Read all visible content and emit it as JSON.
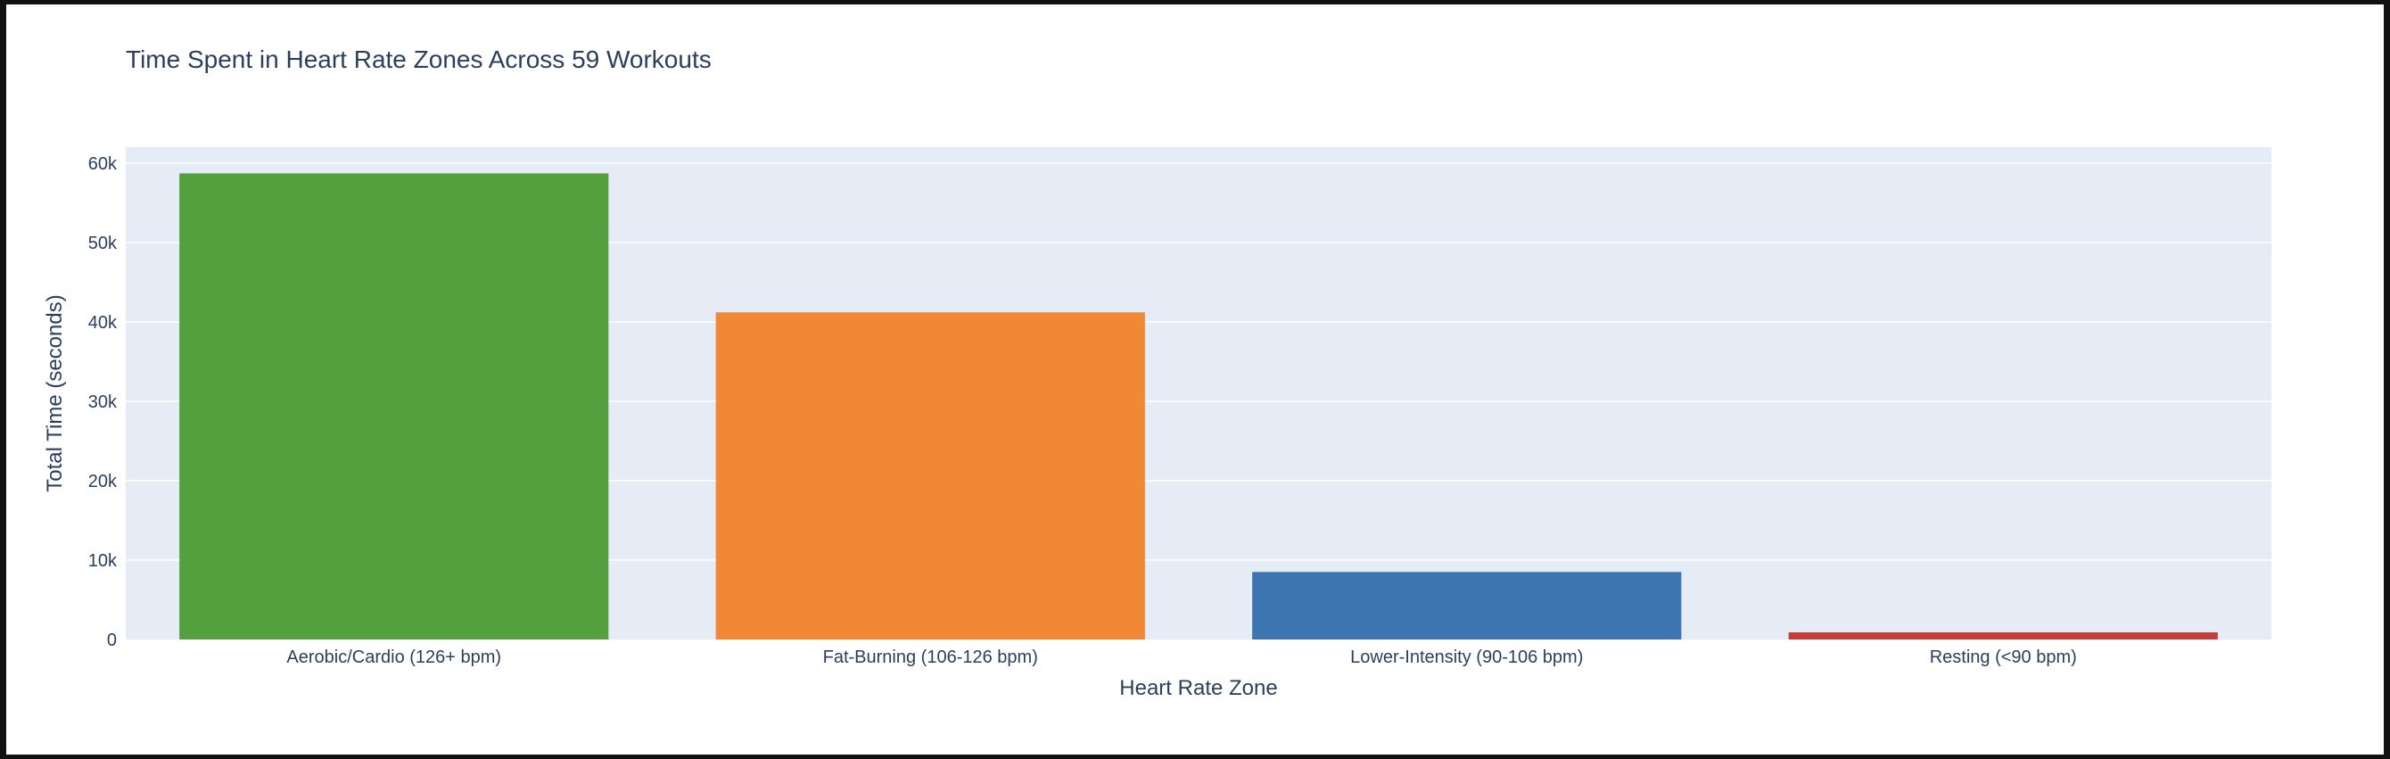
{
  "chart_data": {
    "type": "bar",
    "title": "Time Spent in Heart Rate Zones Across 59 Workouts",
    "xlabel": "Heart Rate Zone",
    "ylabel": "Total Time (seconds)",
    "categories": [
      "Aerobic/Cardio (126+ bpm)",
      "Fat-Burning (106-126 bpm)",
      "Lower-Intensity (90-106 bpm)",
      "Resting (<90 bpm)"
    ],
    "values": [
      58700,
      41200,
      8500,
      900
    ],
    "colors": [
      "#54a03e",
      "#f08836",
      "#3d75b0",
      "#c93d38"
    ],
    "ylim": [
      0,
      62000
    ],
    "yticks": [
      0,
      10000,
      20000,
      30000,
      40000,
      50000,
      60000
    ],
    "ytick_labels": [
      "0",
      "10k",
      "20k",
      "30k",
      "40k",
      "50k",
      "60k"
    ],
    "grid": true,
    "plot_background": "#e5ecf6",
    "legend": "none"
  }
}
